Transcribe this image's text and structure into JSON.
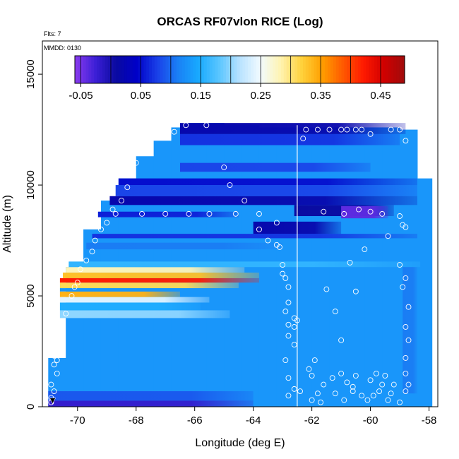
{
  "chart_data": {
    "type": "heatmap",
    "title": "ORCAS RF07vlon RICE (Log)",
    "annotations": [
      "Flts: 7",
      "MMDD: 0130"
    ],
    "xlabel": "Longitude (deg E)",
    "ylabel": "Altitude (m)",
    "xlim": [
      -71.2,
      -57.7
    ],
    "ylim": [
      0,
      16500
    ],
    "x_ticks": [
      -70,
      -68,
      -66,
      -64,
      -62,
      -60,
      -58
    ],
    "y_ticks": [
      0,
      5000,
      10000,
      15000
    ],
    "colorbar": {
      "range": [
        -0.06,
        0.49
      ],
      "ticks": [
        -0.05,
        0.05,
        0.15,
        0.25,
        0.35,
        0.45
      ],
      "tick_labels": [
        "-0.05",
        "0.05",
        "0.15",
        "0.25",
        "0.35",
        "0.45"
      ],
      "colors": [
        "#8b3cf0",
        "#3c1fd6",
        "#0a0aa0",
        "#0000c8",
        "#1a40e8",
        "#1a80f5",
        "#18aaff",
        "#5ac6ff",
        "#b8e2ff",
        "#f2fbff",
        "#fff3b0",
        "#ffd23c",
        "#ff9f00",
        "#ff5a00",
        "#ff1a00",
        "#d00000",
        "#a00c0c"
      ]
    },
    "background_value": 0.13,
    "coverage": {
      "x_edges": [
        -71.0,
        -70.4,
        -69.8,
        -69.2,
        -68.6,
        -68.0,
        -67.4,
        -66.8,
        -66.2,
        -65.6,
        -65.0,
        -64.4,
        -63.8,
        -63.2,
        -62.6,
        -62.0,
        -61.4,
        -60.8,
        -60.2,
        -59.6,
        -59.0,
        -58.4,
        -57.9
      ],
      "top_altitude": [
        2200,
        6300,
        8000,
        9300,
        10300,
        11300,
        12000,
        12600,
        12800,
        12800,
        12700,
        12700,
        12600,
        12600,
        12600,
        12600,
        12600,
        12600,
        12600,
        12600,
        12500,
        10300
      ]
    },
    "bands": [
      {
        "y0": 0,
        "y1": 280,
        "x0": -71.0,
        "x1": -64.0,
        "value": -0.02
      },
      {
        "y0": 280,
        "y1": 700,
        "x0": -71.0,
        "x1": -64.0,
        "value": 0.09
      },
      {
        "y0": 4000,
        "y1": 4350,
        "x0": -70.6,
        "x1": -64.8,
        "value": 0.2
      },
      {
        "y0": 4350,
        "y1": 4700,
        "x0": -70.6,
        "x1": -65.8,
        "value": 0.15
      },
      {
        "y0": 4700,
        "y1": 4950,
        "x0": -70.6,
        "x1": -65.5,
        "value": 0.24
      },
      {
        "y0": 4950,
        "y1": 5200,
        "x0": -70.6,
        "x1": -66.5,
        "value": 0.34
      },
      {
        "y0": 5200,
        "y1": 5350,
        "x0": -70.6,
        "x1": -65.2,
        "value": 0.13
      },
      {
        "y0": 5350,
        "y1": 5600,
        "x0": -70.6,
        "x1": -64.5,
        "value": 0.31
      },
      {
        "y0": 5600,
        "y1": 5800,
        "x0": -70.6,
        "x1": -63.8,
        "value": 0.42
      },
      {
        "y0": 5800,
        "y1": 6050,
        "x0": -70.5,
        "x1": -63.8,
        "value": 0.33
      },
      {
        "y0": 6050,
        "y1": 6300,
        "x0": -70.4,
        "x1": -64.3,
        "value": 0.28
      },
      {
        "y0": 6300,
        "y1": 6550,
        "x0": -70.3,
        "x1": -58.3,
        "value": 0.16
      },
      {
        "y0": 7100,
        "y1": 7400,
        "x0": -69.7,
        "x1": -63.0,
        "value": 0.11
      },
      {
        "y0": 7600,
        "y1": 7800,
        "x0": -69.5,
        "x1": -58.4,
        "value": 0.07
      },
      {
        "y0": 7800,
        "y1": 8350,
        "x0": -64.0,
        "x1": -61.0,
        "value": 0.02
      },
      {
        "y0": 8550,
        "y1": 8800,
        "x0": -69.3,
        "x1": -64.5,
        "value": 0.06
      },
      {
        "y0": 8600,
        "y1": 9100,
        "x0": -62.6,
        "x1": -59.2,
        "value": 0.01
      },
      {
        "y0": 8500,
        "y1": 9050,
        "x0": -61.0,
        "x1": -59.4,
        "value": -0.04
      },
      {
        "y0": 9100,
        "y1": 9500,
        "x0": -68.9,
        "x1": -58.4,
        "value": 0.02
      },
      {
        "y0": 9500,
        "y1": 10000,
        "x0": -68.7,
        "x1": -58.4,
        "value": 0.08
      },
      {
        "y0": 10000,
        "y1": 10300,
        "x0": -68.6,
        "x1": -58.4,
        "value": 0.05
      },
      {
        "y0": 10600,
        "y1": 11000,
        "x0": -66.5,
        "x1": -60.0,
        "value": 0.08
      },
      {
        "y0": 11800,
        "y1": 12300,
        "x0": -66.5,
        "x1": -59.0,
        "value": 0.07
      },
      {
        "y0": 12300,
        "y1": 12800,
        "x0": -66.5,
        "x1": -58.8,
        "value": 0.02
      },
      {
        "y0": 600,
        "y1": 6300,
        "x0": -58.9,
        "x1": -58.4,
        "value": 0.11
      }
    ],
    "vertical_line_x": -62.5,
    "points": [
      [
        -70.9,
        200
      ],
      [
        -70.9,
        400
      ],
      [
        -70.8,
        700
      ],
      [
        -70.9,
        1000
      ],
      [
        -70.7,
        1500
      ],
      [
        -70.8,
        1900
      ],
      [
        -70.7,
        2100
      ],
      [
        -70.8,
        2300
      ],
      [
        -70.7,
        2800
      ],
      [
        -70.6,
        3000
      ],
      [
        -70.5,
        3600
      ],
      [
        -70.4,
        4200
      ],
      [
        -70.2,
        5000
      ],
      [
        -70.1,
        5400
      ],
      [
        -70.0,
        5600
      ],
      [
        -69.9,
        6200
      ],
      [
        -69.7,
        6600
      ],
      [
        -69.5,
        7000
      ],
      [
        -69.4,
        7500
      ],
      [
        -69.2,
        8000
      ],
      [
        -69.0,
        8300
      ],
      [
        -68.8,
        8900
      ],
      [
        -68.5,
        9300
      ],
      [
        -68.3,
        9900
      ],
      [
        -68.2,
        10700
      ],
      [
        -68.0,
        11000
      ],
      [
        -67.7,
        11800
      ],
      [
        -67.3,
        12200
      ],
      [
        -66.7,
        12400
      ],
      [
        -66.3,
        12700
      ],
      [
        -65.6,
        12700
      ],
      [
        -69.6,
        8700
      ],
      [
        -68.7,
        8700
      ],
      [
        -67.8,
        8700
      ],
      [
        -67.0,
        8700
      ],
      [
        -66.2,
        8700
      ],
      [
        -65.5,
        8700
      ],
      [
        -64.6,
        8700
      ],
      [
        -63.8,
        8700
      ],
      [
        -64.3,
        9300
      ],
      [
        -64.8,
        10000
      ],
      [
        -65.0,
        10800
      ],
      [
        -63.8,
        8000
      ],
      [
        -63.5,
        7500
      ],
      [
        -63.2,
        7300
      ],
      [
        -63.0,
        6400
      ],
      [
        -62.9,
        5800
      ],
      [
        -62.8,
        5400
      ],
      [
        -62.8,
        4700
      ],
      [
        -62.6,
        4000
      ],
      [
        -62.6,
        3600
      ],
      [
        -62.8,
        3200
      ],
      [
        -62.6,
        2800
      ],
      [
        -62.9,
        2100
      ],
      [
        -62.8,
        1300
      ],
      [
        -62.6,
        800
      ],
      [
        -62.8,
        500
      ],
      [
        -63.2,
        8300
      ],
      [
        -63.1,
        7200
      ],
      [
        -63.0,
        6000
      ],
      [
        -62.9,
        4300
      ],
      [
        -62.8,
        3700
      ],
      [
        -62.2,
        12500
      ],
      [
        -61.8,
        12500
      ],
      [
        -61.4,
        12500
      ],
      [
        -61.0,
        12500
      ],
      [
        -60.8,
        12500
      ],
      [
        -60.5,
        12500
      ],
      [
        -60.3,
        12500
      ],
      [
        -62.3,
        12100
      ],
      [
        -60.0,
        12300
      ],
      [
        -59.3,
        12500
      ],
      [
        -59.0,
        12500
      ],
      [
        -58.8,
        12000
      ],
      [
        -61.6,
        8800
      ],
      [
        -60.9,
        8700
      ],
      [
        -60.4,
        8900
      ],
      [
        -60.0,
        8800
      ],
      [
        -59.6,
        8700
      ],
      [
        -59.0,
        8600
      ],
      [
        -58.8,
        8100
      ],
      [
        -62.5,
        3900
      ],
      [
        -61.0,
        3000
      ],
      [
        -61.2,
        4300
      ],
      [
        -61.5,
        5300
      ],
      [
        -60.5,
        5200
      ],
      [
        -60.7,
        6500
      ],
      [
        -60.2,
        7100
      ],
      [
        -59.4,
        7700
      ],
      [
        -58.9,
        8200
      ],
      [
        -59.0,
        6400
      ],
      [
        -58.8,
        5800
      ],
      [
        -58.9,
        5400
      ],
      [
        -58.7,
        4500
      ],
      [
        -58.8,
        3600
      ],
      [
        -58.7,
        3000
      ],
      [
        -58.8,
        2200
      ],
      [
        -58.8,
        1500
      ],
      [
        -58.7,
        1000
      ],
      [
        -58.8,
        700
      ],
      [
        -62.0,
        1400
      ],
      [
        -61.6,
        1000
      ],
      [
        -61.2,
        600
      ],
      [
        -61.0,
        1500
      ],
      [
        -60.6,
        900
      ],
      [
        -60.3,
        500
      ],
      [
        -60.0,
        1200
      ],
      [
        -59.7,
        700
      ],
      [
        -59.4,
        300
      ],
      [
        -59.2,
        1000
      ],
      [
        -59.0,
        200
      ],
      [
        -62.4,
        700
      ],
      [
        -62.0,
        300
      ],
      [
        -61.7,
        200
      ],
      [
        -61.3,
        1300
      ],
      [
        -60.9,
        300
      ],
      [
        -60.5,
        1400
      ],
      [
        -60.1,
        300
      ],
      [
        -59.8,
        1500
      ],
      [
        -59.6,
        1000
      ],
      [
        -59.3,
        600
      ],
      [
        -61.9,
        2100
      ],
      [
        -62.1,
        1700
      ],
      [
        -60.6,
        700
      ],
      [
        -59.5,
        1400
      ],
      [
        -61.8,
        600
      ],
      [
        -60.8,
        1100
      ],
      [
        -59.9,
        500
      ]
    ],
    "marker": {
      "x": -70.85,
      "y": 200
    }
  }
}
